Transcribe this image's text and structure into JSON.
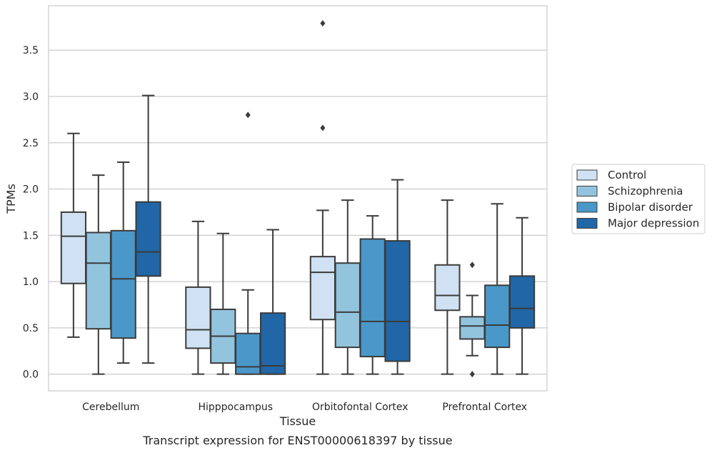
{
  "chart_data": {
    "type": "box",
    "caption": "Transcript expression for ENST00000618397 by tissue",
    "xlabel": "Tissue",
    "ylabel": "TPMs",
    "ylim": [
      -0.18,
      3.98
    ],
    "yticks": [
      0.0,
      0.5,
      1.0,
      1.5,
      2.0,
      2.5,
      3.0,
      3.5
    ],
    "ytick_labels": [
      "0.0",
      "0.5",
      "1.0",
      "1.5",
      "2.0",
      "2.5",
      "3.0",
      "3.5"
    ],
    "grid": "horizontal",
    "legend_position": "right",
    "categories": [
      "Cerebellum",
      "Hipppocampus",
      "Orbitofontal Cortex",
      "Prefrontal Cortex"
    ],
    "series": [
      {
        "name": "Control",
        "color": "#cfe1f2",
        "boxes": [
          {
            "whislo": 0.4,
            "q1": 0.98,
            "med": 1.49,
            "q3": 1.75,
            "whishi": 2.6,
            "fliers": []
          },
          {
            "whislo": 0.0,
            "q1": 0.28,
            "med": 0.48,
            "q3": 0.94,
            "whishi": 1.65,
            "fliers": []
          },
          {
            "whislo": 0.0,
            "q1": 0.59,
            "med": 1.1,
            "q3": 1.27,
            "whishi": 1.77,
            "fliers": [
              2.66,
              3.79
            ]
          },
          {
            "whislo": 0.0,
            "q1": 0.69,
            "med": 0.85,
            "q3": 1.18,
            "whishi": 1.88,
            "fliers": []
          }
        ]
      },
      {
        "name": "Schizophrenia",
        "color": "#93c4de",
        "boxes": [
          {
            "whislo": 0.0,
            "q1": 0.49,
            "med": 1.2,
            "q3": 1.53,
            "whishi": 2.15,
            "fliers": []
          },
          {
            "whislo": 0.0,
            "q1": 0.12,
            "med": 0.41,
            "q3": 0.7,
            "whishi": 1.52,
            "fliers": []
          },
          {
            "whislo": 0.0,
            "q1": 0.29,
            "med": 0.67,
            "q3": 1.2,
            "whishi": 1.88,
            "fliers": []
          },
          {
            "whislo": 0.2,
            "q1": 0.38,
            "med": 0.52,
            "q3": 0.62,
            "whishi": 0.85,
            "fliers": [
              0.0,
              1.18
            ]
          }
        ]
      },
      {
        "name": "Bipolar disorder",
        "color": "#4a98c9",
        "boxes": [
          {
            "whislo": 0.12,
            "q1": 0.39,
            "med": 1.03,
            "q3": 1.55,
            "whishi": 2.29,
            "fliers": []
          },
          {
            "whislo": 0.0,
            "q1": 0.0,
            "med": 0.08,
            "q3": 0.44,
            "whishi": 0.91,
            "fliers": [
              2.8
            ]
          },
          {
            "whislo": 0.0,
            "q1": 0.19,
            "med": 0.57,
            "q3": 1.46,
            "whishi": 1.71,
            "fliers": []
          },
          {
            "whislo": 0.0,
            "q1": 0.29,
            "med": 0.53,
            "q3": 0.96,
            "whishi": 1.84,
            "fliers": []
          }
        ]
      },
      {
        "name": "Major depression",
        "color": "#2166a6",
        "boxes": [
          {
            "whislo": 0.12,
            "q1": 1.06,
            "med": 1.32,
            "q3": 1.86,
            "whishi": 3.01,
            "fliers": []
          },
          {
            "whislo": 0.0,
            "q1": 0.0,
            "med": 0.09,
            "q3": 0.66,
            "whishi": 1.56,
            "fliers": []
          },
          {
            "whislo": 0.0,
            "q1": 0.14,
            "med": 0.57,
            "q3": 1.44,
            "whishi": 2.1,
            "fliers": []
          },
          {
            "whislo": 0.0,
            "q1": 0.5,
            "med": 0.71,
            "q3": 1.06,
            "whishi": 1.69,
            "fliers": []
          }
        ]
      }
    ]
  }
}
